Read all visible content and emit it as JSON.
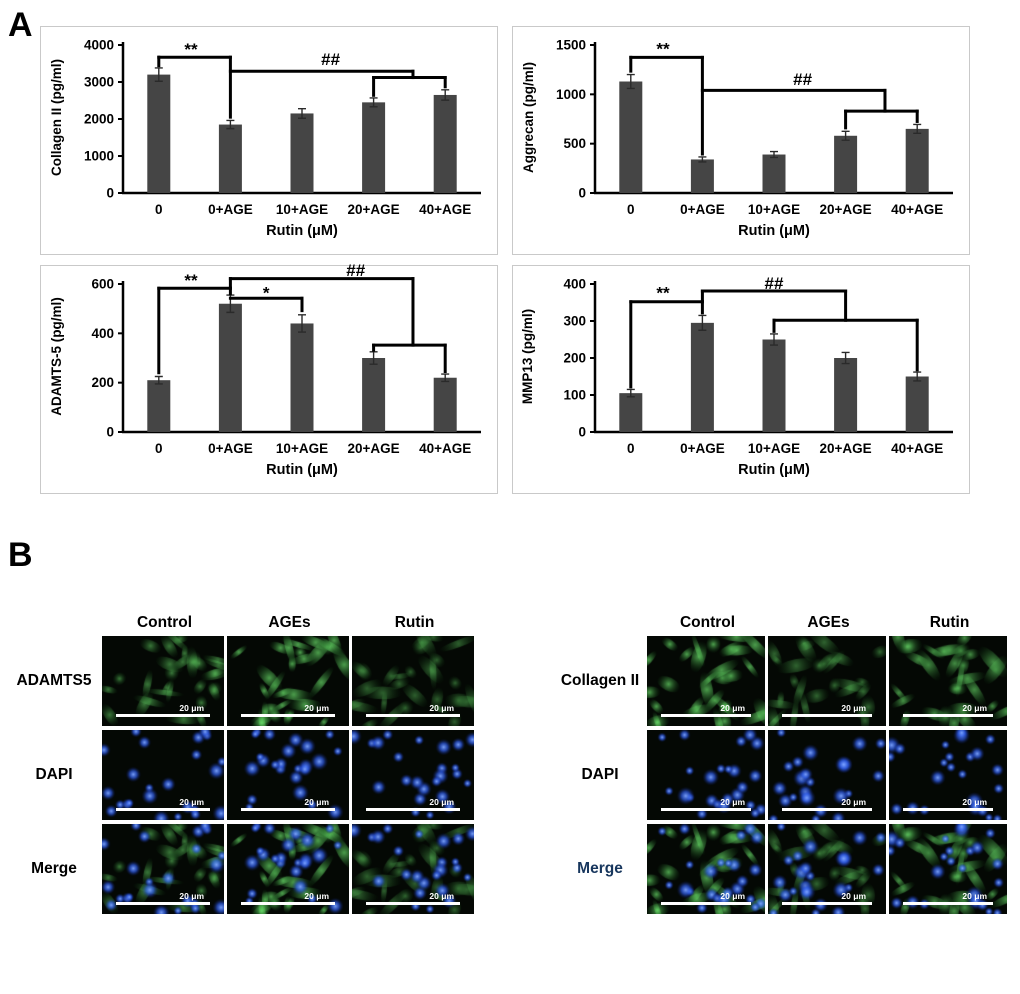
{
  "figure": {
    "panel_a_label": "A",
    "panel_b_label": "B"
  },
  "chart_data": [
    {
      "type": "bar",
      "ylabel": "Collagen II (pg/ml)",
      "xlabel": "Rutin (μM)",
      "categories": [
        "0",
        "0+AGE",
        "10+AGE",
        "20+AGE",
        "40+AGE"
      ],
      "values": [
        3200,
        1850,
        2150,
        2450,
        2650
      ],
      "errors": [
        180,
        110,
        130,
        120,
        140
      ],
      "ylim": [
        0,
        4000
      ],
      "yticks": [
        0,
        1000,
        2000,
        3000,
        4000
      ],
      "bar_color": "#454545",
      "annotations": [
        {
          "label": "**",
          "lx": 0.45,
          "ly": 3870,
          "lines": [
            [
              0,
              3440,
              0,
              3670
            ],
            [
              0,
              3670,
              1,
              3670
            ],
            [
              1,
              3670,
              1,
              2050
            ]
          ]
        },
        {
          "label": "##",
          "lx": 2.4,
          "ly": 3600,
          "lines": [
            [
              1,
              3290,
              3.55,
              3290
            ],
            [
              3.55,
              3290,
              3.55,
              3120
            ],
            [
              3,
              3120,
              4,
              3120
            ],
            [
              3,
              3120,
              3,
              2640
            ],
            [
              4,
              3120,
              4,
              2870
            ]
          ]
        }
      ]
    },
    {
      "type": "bar",
      "ylabel": "Aggrecan (pg/ml)",
      "xlabel": "Rutin (μM)",
      "categories": [
        "0",
        "0+AGE",
        "10+AGE",
        "20+AGE",
        "40+AGE"
      ],
      "values": [
        1130,
        340,
        390,
        580,
        650
      ],
      "errors": [
        70,
        25,
        30,
        45,
        45
      ],
      "ylim": [
        0,
        1500
      ],
      "yticks": [
        0,
        500,
        1000,
        1500
      ],
      "bar_color": "#454545",
      "annotations": [
        {
          "label": "**",
          "lx": 0.45,
          "ly": 1455,
          "lines": [
            [
              0,
              1235,
              0,
              1375
            ],
            [
              0,
              1375,
              1,
              1375
            ],
            [
              1,
              1375,
              1,
              395
            ]
          ]
        },
        {
          "label": "##",
          "lx": 2.4,
          "ly": 1145,
          "lines": [
            [
              1,
              1040,
              3.55,
              1040
            ],
            [
              3.55,
              1040,
              3.55,
              830
            ],
            [
              3,
              830,
              4,
              830
            ],
            [
              3,
              830,
              3,
              660
            ],
            [
              4,
              830,
              4,
              725
            ]
          ]
        }
      ]
    },
    {
      "type": "bar",
      "ylabel": "ADAMTS-5 (pg/ml)",
      "xlabel": "Rutin (μM)",
      "categories": [
        "0",
        "0+AGE",
        "10+AGE",
        "20+AGE",
        "40+AGE"
      ],
      "values": [
        210,
        520,
        440,
        300,
        220
      ],
      "errors": [
        15,
        35,
        35,
        25,
        15
      ],
      "ylim": [
        0,
        600
      ],
      "yticks": [
        0,
        200,
        400,
        600
      ],
      "bar_color": "#454545",
      "annotations": [
        {
          "label": "**",
          "lx": 0.45,
          "ly": 612,
          "lines": [
            [
              0,
              240,
              0,
              583
            ],
            [
              0,
              583,
              1,
              583
            ],
            [
              1,
              583,
              1,
              560
            ]
          ]
        },
        {
          "label": "*",
          "lx": 1.5,
          "ly": 562,
          "lines": [
            [
              1,
              542,
              2,
              542
            ],
            [
              2,
              542,
              2,
              492
            ]
          ]
        },
        {
          "label": "##",
          "lx": 2.75,
          "ly": 652,
          "lines": [
            [
              1,
              583,
              1,
              622
            ],
            [
              1,
              622,
              3.55,
              622
            ],
            [
              3.55,
              622,
              3.55,
              352
            ],
            [
              3,
              352,
              4,
              352
            ],
            [
              3,
              352,
              3,
              332
            ],
            [
              4,
              352,
              4,
              245
            ]
          ]
        }
      ]
    },
    {
      "type": "bar",
      "ylabel": "MMP13 (pg/ml)",
      "xlabel": "Rutin (μM)",
      "categories": [
        "0",
        "0+AGE",
        "10+AGE",
        "20+AGE",
        "40+AGE"
      ],
      "values": [
        105,
        295,
        250,
        200,
        150
      ],
      "errors": [
        10,
        20,
        15,
        15,
        12
      ],
      "ylim": [
        0,
        400
      ],
      "yticks": [
        0,
        100,
        200,
        300,
        400
      ],
      "bar_color": "#454545",
      "annotations": [
        {
          "label": "**",
          "lx": 0.45,
          "ly": 374,
          "lines": [
            [
              0,
              122,
              0,
              352
            ],
            [
              0,
              352,
              1,
              352
            ],
            [
              1,
              352,
              1,
              322
            ]
          ]
        },
        {
          "label": "##",
          "lx": 2.0,
          "ly": 400,
          "lines": [
            [
              1,
              352,
              1,
              381
            ],
            [
              1,
              381,
              3,
              381
            ],
            [
              3,
              381,
              3,
              302
            ],
            [
              2,
              302,
              4,
              302
            ],
            [
              2,
              302,
              2,
              272
            ],
            [
              4,
              302,
              4,
              168
            ]
          ]
        }
      ]
    }
  ],
  "microscopy": {
    "left": {
      "columns": [
        "Control",
        "AGEs",
        "Rutin"
      ],
      "rows": [
        {
          "label": "ADAMTS5",
          "type": "green",
          "intensity": [
            0.65,
            1.0,
            0.45
          ]
        },
        {
          "label": "DAPI",
          "type": "dapi",
          "intensity": [
            1,
            1,
            1
          ]
        },
        {
          "label": "Merge",
          "type": "merge",
          "intensity": [
            0.65,
            1.0,
            0.45
          ]
        }
      ],
      "scale_label": "20 μm"
    },
    "right": {
      "columns": [
        "Control",
        "AGEs",
        "Rutin"
      ],
      "rows": [
        {
          "label": "Collagen II",
          "type": "green",
          "intensity": [
            1.0,
            0.5,
            0.85
          ]
        },
        {
          "label": "DAPI",
          "type": "dapi",
          "intensity": [
            1,
            1,
            1
          ]
        },
        {
          "label": "Merge",
          "type": "merge",
          "intensity": [
            1.0,
            0.5,
            0.85
          ],
          "color": "#17365d"
        }
      ],
      "scale_label": "20 μm"
    }
  }
}
